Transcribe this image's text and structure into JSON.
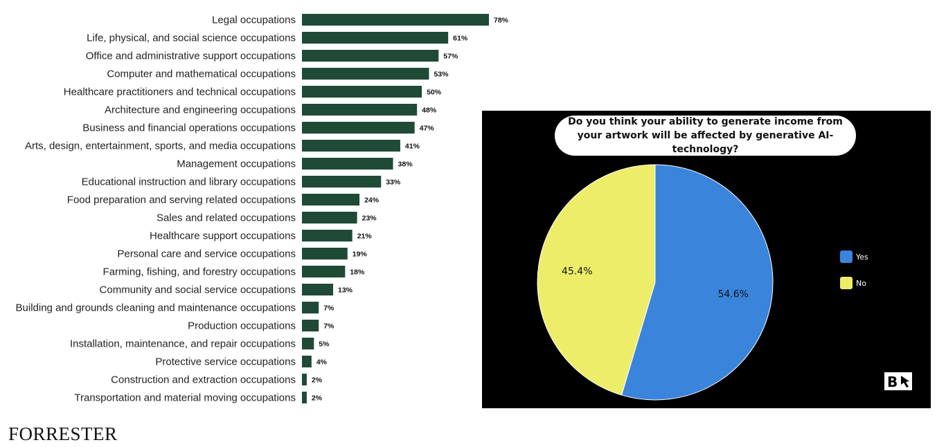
{
  "chart_data": [
    {
      "type": "bar",
      "orientation": "horizontal",
      "categories": [
        "Legal occupations",
        "Life, physical, and social science occupations",
        "Office and administrative support occupations",
        "Computer and mathematical occupations",
        "Healthcare practitioners and technical occupations",
        "Architecture and engineering occupations",
        "Business and financial operations occupations",
        "Arts, design, entertainment, sports, and media occupations",
        "Management occupations",
        "Educational instruction and library occupations",
        "Food preparation and serving related occupations",
        "Sales and related occupations",
        "Healthcare support occupations",
        "Personal care and service occupations",
        "Farming, fishing, and forestry occupations",
        "Community and social service occupations",
        "Building and grounds cleaning and maintenance occupations",
        "Production occupations",
        "Installation, maintenance, and repair occupations",
        "Protective service occupations",
        "Construction and extraction occupations",
        "Transportation and material moving occupations"
      ],
      "values": [
        78,
        61,
        57,
        53,
        50,
        48,
        47,
        41,
        38,
        33,
        24,
        23,
        21,
        19,
        18,
        13,
        7,
        7,
        5,
        4,
        2,
        2
      ],
      "value_labels": [
        "78%",
        "61%",
        "57%",
        "53%",
        "50%",
        "48%",
        "47%",
        "41%",
        "38%",
        "33%",
        "24%",
        "23%",
        "21%",
        "19%",
        "18%",
        "13%",
        "7%",
        "7%",
        "5%",
        "4%",
        "2%",
        "2%"
      ],
      "bar_color": "#1f4a36",
      "xlim": [
        0,
        78
      ],
      "grid": false,
      "source": "FORRESTER"
    },
    {
      "type": "pie",
      "title": "Do you think your ability to generate income from your artwork will be affected by generative AI-technology?",
      "slices": [
        {
          "name": "Yes",
          "value": 54.6,
          "label": "54.6%",
          "color": "#3a84dc"
        },
        {
          "name": "No",
          "value": 45.4,
          "label": "45.4%",
          "color": "#eded6a"
        }
      ],
      "legend_position": "right",
      "background": "#000000",
      "logo": "B"
    }
  ]
}
